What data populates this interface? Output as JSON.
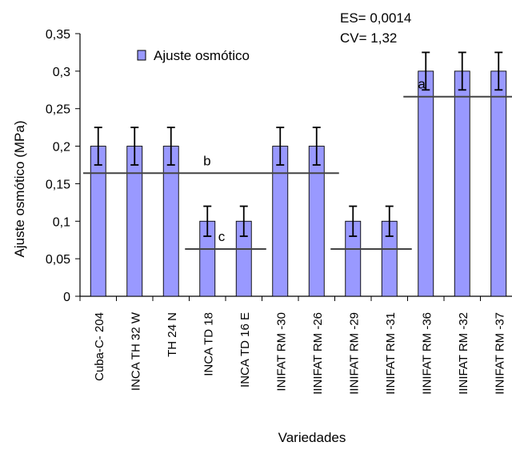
{
  "chart_data": {
    "type": "bar",
    "xlabel": "Variedades",
    "ylabel": "Ajuste osmótico (MPa)",
    "ylim": [
      0,
      0.35
    ],
    "yticks": [
      "0",
      "0,05",
      "0,1",
      "0,15",
      "0,2",
      "0,25",
      "0,3",
      "0,35"
    ],
    "categories": [
      "Cuba-C- 204",
      "INCA TH 32 W",
      "TH 24 N",
      "INCA TD 18",
      "INCA TD 16 E",
      "INIFAT RM -30",
      "IINIFAT RM -26",
      "IINIFAT RM -29",
      "IINIFAT RM -31",
      "IINIFAT RM -36",
      "IINIFAT RM -32",
      "IINIFAT RM -37"
    ],
    "series": [
      {
        "name": "Ajuste osmótico",
        "values": [
          0.2,
          0.2,
          0.2,
          0.1,
          0.1,
          0.2,
          0.2,
          0.1,
          0.1,
          0.3,
          0.3,
          0.3
        ],
        "error": [
          0.025,
          0.025,
          0.025,
          0.02,
          0.02,
          0.025,
          0.025,
          0.02,
          0.02,
          0.025,
          0.025,
          0.025
        ],
        "color": "#9999ff"
      }
    ],
    "stats": [
      "ES= 0,0014",
      "CV= 1,32"
    ],
    "groups": [
      {
        "label": "a",
        "value": 0.266,
        "from": 9,
        "to": 11
      },
      {
        "label": "b",
        "value": 0.164,
        "from": 0,
        "to": 6
      },
      {
        "label": "c",
        "value": 0.063,
        "from": 3,
        "to": 4
      },
      {
        "label": "",
        "value": 0.063,
        "from": 7,
        "to": 8
      }
    ],
    "legend": "top-left",
    "grid": false
  }
}
